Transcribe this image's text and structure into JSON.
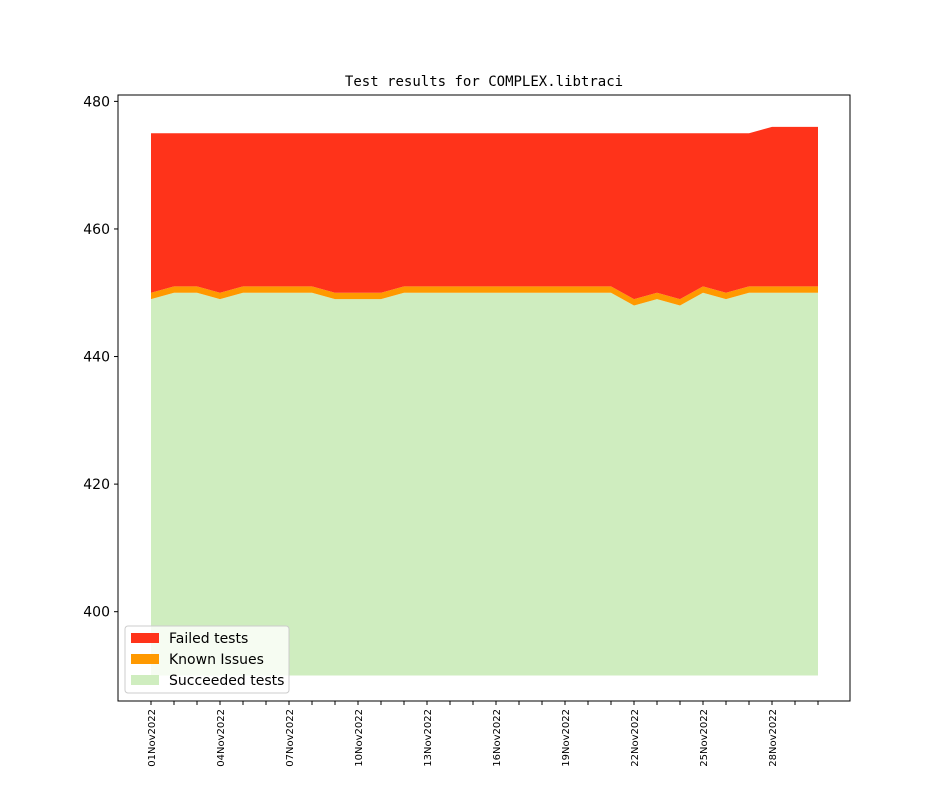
{
  "chart_data": {
    "type": "area",
    "title": "Test results for COMPLEX.libtraci",
    "xlabel": "",
    "ylabel": "",
    "ylim": [
      386,
      481
    ],
    "yticks": [
      400,
      420,
      440,
      460,
      480
    ],
    "x": [
      "01Nov2022",
      "02Nov2022",
      "03Nov2022",
      "04Nov2022",
      "05Nov2022",
      "06Nov2022",
      "07Nov2022",
      "08Nov2022",
      "09Nov2022",
      "10Nov2022",
      "11Nov2022",
      "12Nov2022",
      "13Nov2022",
      "14Nov2022",
      "15Nov2022",
      "16Nov2022",
      "17Nov2022",
      "18Nov2022",
      "19Nov2022",
      "20Nov2022",
      "21Nov2022",
      "22Nov2022",
      "23Nov2022",
      "24Nov2022",
      "25Nov2022",
      "26Nov2022",
      "27Nov2022",
      "28Nov2022",
      "29Nov2022",
      "30Nov2022"
    ],
    "xtick_labels": [
      "01Nov2022",
      "04Nov2022",
      "07Nov2022",
      "10Nov2022",
      "13Nov2022",
      "16Nov2022",
      "19Nov2022",
      "22Nov2022",
      "25Nov2022",
      "28Nov2022"
    ],
    "baseline": 390,
    "series": [
      {
        "name": "Succeeded tests",
        "color": "#cfedbf",
        "values": [
          449,
          450,
          450,
          449,
          450,
          450,
          450,
          450,
          449,
          449,
          449,
          450,
          450,
          450,
          450,
          450,
          450,
          450,
          450,
          450,
          450,
          448,
          449,
          448,
          450,
          449,
          450,
          450,
          450,
          450
        ]
      },
      {
        "name": "Known Issues",
        "color": "#ff9900",
        "values": [
          1,
          1,
          1,
          1,
          1,
          1,
          1,
          1,
          1,
          1,
          1,
          1,
          1,
          1,
          1,
          1,
          1,
          1,
          1,
          1,
          1,
          1,
          1,
          1,
          1,
          1,
          1,
          1,
          1,
          1
        ]
      },
      {
        "name": "Failed tests",
        "color": "#ff331a",
        "values": [
          25,
          24,
          24,
          25,
          24,
          24,
          24,
          24,
          25,
          25,
          25,
          24,
          24,
          24,
          24,
          24,
          24,
          24,
          24,
          24,
          24,
          26,
          25,
          26,
          24,
          25,
          24,
          25,
          25,
          25
        ]
      }
    ],
    "legend": {
      "position": "lower-left",
      "entries": [
        "Failed tests",
        "Known Issues",
        "Succeeded tests"
      ]
    },
    "grid": false
  }
}
